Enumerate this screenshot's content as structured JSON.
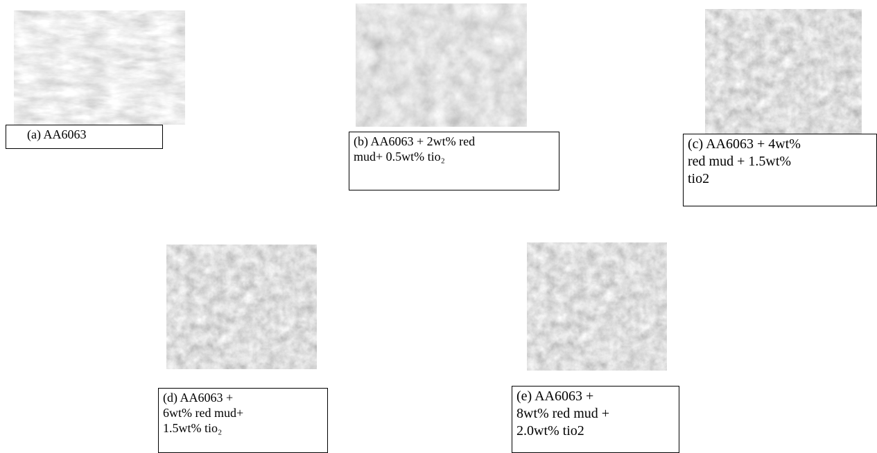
{
  "panels": [
    {
      "caption": [
        "(a) AA6063"
      ]
    },
    {
      "caption": [
        "(b) AA6063 + 2wt% red",
        "mud+ 0.5wt% tio₂"
      ]
    },
    {
      "caption": [
        "(c) AA6063 + 4wt%",
        "red mud + 1.5wt%",
        "tio2"
      ]
    },
    {
      "caption": [
        "(d) AA6063 +",
        "6wt% red mud+",
        "1.5wt% tio₂"
      ]
    },
    {
      "caption": [
        "(e) AA6063 +",
        "8wt% red mud +",
        "2.0wt% tio2"
      ]
    }
  ]
}
